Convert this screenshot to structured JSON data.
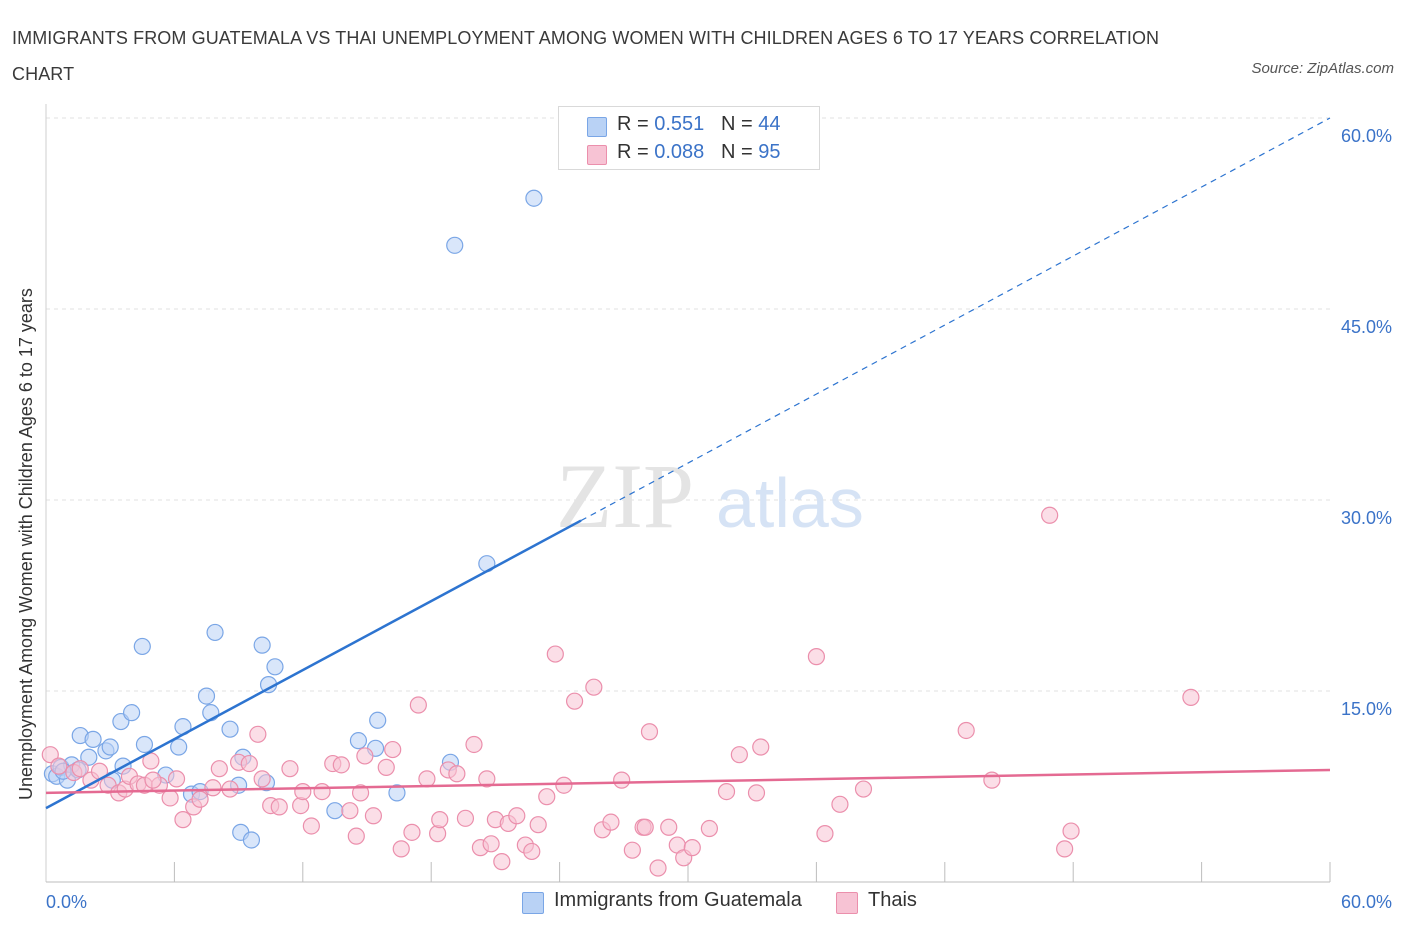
{
  "title": "IMMIGRANTS FROM GUATEMALA VS THAI UNEMPLOYMENT AMONG WOMEN WITH CHILDREN AGES 6 TO 17 YEARS CORRELATION CHART",
  "source": "Source: ZipAtlas.com",
  "watermark": {
    "zip": "ZIP",
    "atlas": "atlas"
  },
  "legend_top": {
    "rows": [
      {
        "r_label": "R = ",
        "r_value": "0.551",
        "n_label": "N = ",
        "n_value": "44"
      },
      {
        "r_label": "R = ",
        "r_value": "0.088",
        "n_label": "N = ",
        "n_value": "95"
      }
    ]
  },
  "colors": {
    "blue_fill": "#b9d2f5",
    "blue_stroke": "#7aa6e6",
    "blue_line": "#2d74d0",
    "pink_fill": "#f7c3d4",
    "pink_stroke": "#eb8fac",
    "pink_line": "#e46a92",
    "tick_label": "#3b73c8",
    "grid": "#e1e1e1"
  },
  "chart_data": {
    "type": "scatter",
    "title": "IMMIGRANTS FROM GUATEMALA VS THAI UNEMPLOYMENT AMONG WOMEN WITH CHILDREN AGES 6 TO 17 YEARS CORRELATION CHART",
    "xlabel": "",
    "ylabel": "Unemployment Among Women with Children Ages 6 to 17 years",
    "xlim": [
      0,
      60
    ],
    "ylim": [
      0,
      60
    ],
    "x_tick_labels": [
      "0.0%",
      "60.0%"
    ],
    "y_tick_labels": [
      "15.0%",
      "30.0%",
      "45.0%",
      "60.0%"
    ],
    "y_ticks": [
      15,
      30,
      45,
      60
    ],
    "grid": true,
    "legend_position": "top-center",
    "series": [
      {
        "name": "Immigrants from Guatemala",
        "color": "#7aa6e6",
        "R": 0.551,
        "N": 44,
        "trend": {
          "x0": 0,
          "y0": 5.8,
          "x1": 60,
          "y1": 60.0,
          "solid_until_x": 25
        },
        "points": [
          [
            0.3,
            8.5
          ],
          [
            0.5,
            8.3
          ],
          [
            0.7,
            9.0
          ],
          [
            1.0,
            8.0
          ],
          [
            1.2,
            9.2
          ],
          [
            1.5,
            8.8
          ],
          [
            1.6,
            11.5
          ],
          [
            2.0,
            9.8
          ],
          [
            2.2,
            11.2
          ],
          [
            2.8,
            10.3
          ],
          [
            3.0,
            10.6
          ],
          [
            3.1,
            8.0
          ],
          [
            3.5,
            12.6
          ],
          [
            3.6,
            9.1
          ],
          [
            4.0,
            13.3
          ],
          [
            4.5,
            18.5
          ],
          [
            4.6,
            10.8
          ],
          [
            5.6,
            8.4
          ],
          [
            6.2,
            10.6
          ],
          [
            6.4,
            12.2
          ],
          [
            6.8,
            6.9
          ],
          [
            7.2,
            7.1
          ],
          [
            7.5,
            14.6
          ],
          [
            7.7,
            13.3
          ],
          [
            7.9,
            19.6
          ],
          [
            8.6,
            12.0
          ],
          [
            9.1,
            3.9
          ],
          [
            9.2,
            9.8
          ],
          [
            9.6,
            3.3
          ],
          [
            10.1,
            18.6
          ],
          [
            10.4,
            15.5
          ],
          [
            10.7,
            16.9
          ],
          [
            10.3,
            7.8
          ],
          [
            13.5,
            5.6
          ],
          [
            14.6,
            11.1
          ],
          [
            15.4,
            10.5
          ],
          [
            15.5,
            12.7
          ],
          [
            16.4,
            7.0
          ],
          [
            18.9,
            9.4
          ],
          [
            19.1,
            50.0
          ],
          [
            20.6,
            25.0
          ],
          [
            22.8,
            53.7
          ],
          [
            0.8,
            8.7
          ],
          [
            9.0,
            7.6
          ]
        ]
      },
      {
        "name": "Thais",
        "color": "#eb8fac",
        "R": 0.088,
        "N": 95,
        "trend": {
          "x0": 0,
          "y0": 7.0,
          "x1": 60,
          "y1": 8.8
        },
        "points": [
          [
            0.2,
            10.0
          ],
          [
            0.6,
            9.1
          ],
          [
            1.3,
            8.6
          ],
          [
            1.6,
            8.9
          ],
          [
            2.1,
            8.0
          ],
          [
            2.5,
            8.7
          ],
          [
            2.9,
            7.6
          ],
          [
            3.4,
            7.0
          ],
          [
            3.7,
            7.3
          ],
          [
            3.9,
            8.3
          ],
          [
            4.3,
            7.7
          ],
          [
            4.6,
            7.6
          ],
          [
            4.9,
            9.5
          ],
          [
            5.3,
            7.6
          ],
          [
            5.8,
            6.6
          ],
          [
            6.1,
            8.1
          ],
          [
            6.4,
            4.9
          ],
          [
            6.9,
            5.9
          ],
          [
            7.2,
            6.5
          ],
          [
            7.8,
            7.4
          ],
          [
            8.1,
            8.9
          ],
          [
            8.6,
            7.3
          ],
          [
            9.0,
            9.4
          ],
          [
            9.5,
            9.3
          ],
          [
            9.9,
            11.6
          ],
          [
            10.1,
            8.1
          ],
          [
            10.5,
            6.0
          ],
          [
            10.9,
            5.9
          ],
          [
            11.4,
            8.9
          ],
          [
            11.9,
            6.0
          ],
          [
            12.0,
            7.1
          ],
          [
            12.4,
            4.4
          ],
          [
            12.9,
            7.1
          ],
          [
            13.4,
            9.3
          ],
          [
            13.8,
            9.2
          ],
          [
            14.2,
            5.6
          ],
          [
            14.5,
            3.6
          ],
          [
            14.9,
            9.9
          ],
          [
            15.3,
            5.2
          ],
          [
            15.9,
            9.0
          ],
          [
            16.2,
            10.4
          ],
          [
            16.6,
            2.6
          ],
          [
            17.1,
            3.9
          ],
          [
            17.4,
            13.9
          ],
          [
            17.8,
            8.1
          ],
          [
            18.3,
            3.8
          ],
          [
            18.4,
            4.9
          ],
          [
            18.8,
            8.8
          ],
          [
            19.2,
            8.5
          ],
          [
            19.6,
            5.0
          ],
          [
            20.0,
            10.8
          ],
          [
            20.3,
            2.7
          ],
          [
            20.6,
            8.1
          ],
          [
            21.0,
            4.9
          ],
          [
            21.3,
            1.6
          ],
          [
            21.6,
            4.6
          ],
          [
            22.0,
            5.2
          ],
          [
            22.4,
            2.9
          ],
          [
            22.7,
            2.4
          ],
          [
            23.0,
            4.5
          ],
          [
            23.4,
            6.7
          ],
          [
            23.8,
            17.9
          ],
          [
            24.2,
            7.6
          ],
          [
            24.7,
            14.2
          ],
          [
            25.6,
            15.3
          ],
          [
            26.0,
            4.1
          ],
          [
            26.4,
            4.7
          ],
          [
            26.9,
            8.0
          ],
          [
            27.4,
            2.5
          ],
          [
            27.9,
            4.3
          ],
          [
            28.2,
            11.8
          ],
          [
            28.6,
            1.1
          ],
          [
            29.1,
            4.3
          ],
          [
            29.5,
            2.9
          ],
          [
            29.8,
            1.9
          ],
          [
            30.2,
            2.7
          ],
          [
            31.0,
            4.2
          ],
          [
            31.8,
            7.1
          ],
          [
            32.4,
            10.0
          ],
          [
            33.4,
            10.6
          ],
          [
            36.0,
            17.7
          ],
          [
            36.4,
            3.8
          ],
          [
            37.1,
            6.1
          ],
          [
            38.2,
            7.3
          ],
          [
            43.0,
            11.9
          ],
          [
            44.2,
            8.0
          ],
          [
            46.9,
            28.8
          ],
          [
            47.6,
            2.6
          ],
          [
            47.9,
            4.0
          ],
          [
            53.5,
            14.5
          ],
          [
            33.2,
            7.0
          ],
          [
            28.0,
            4.3
          ],
          [
            14.7,
            7.0
          ],
          [
            5.0,
            8.0
          ],
          [
            20.8,
            3.0
          ]
        ]
      }
    ]
  },
  "bottom_legend": [
    "Immigrants from Guatemala",
    "Thais"
  ]
}
